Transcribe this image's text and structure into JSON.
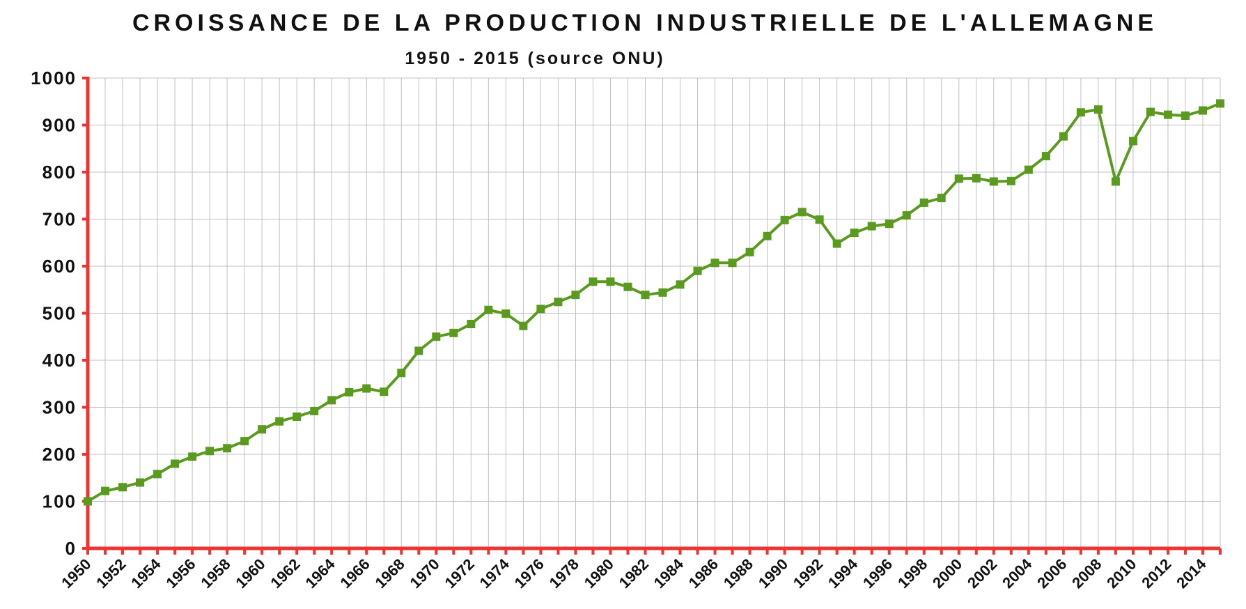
{
  "colors": {
    "series": "#5a9a1e",
    "axis": "#ee3333",
    "grid": "#c0c0c0",
    "text": "#111111"
  },
  "chart_data": {
    "type": "line",
    "title": "CROISSANCE DE LA PRODUCTION INDUSTRIELLE DE L'ALLEMAGNE",
    "subtitle": "1950 - 2015 (source ONU)",
    "xlabel": "",
    "ylabel": "",
    "ylim": [
      0,
      1000
    ],
    "xlim": [
      1950,
      2015
    ],
    "grid": true,
    "legend": "none",
    "yticks": [
      0,
      100,
      200,
      300,
      400,
      500,
      600,
      700,
      800,
      900,
      1000
    ],
    "xtick_labels": [
      "1950",
      "1952",
      "1954",
      "1956",
      "1958",
      "1960",
      "1962",
      "1964",
      "1966",
      "1968",
      "1970",
      "1972",
      "1974",
      "1976",
      "1978",
      "1980",
      "1982",
      "1984",
      "1986",
      "1988",
      "1990",
      "1992",
      "1994",
      "1996",
      "1998",
      "2000",
      "2002",
      "2004",
      "2006",
      "2008",
      "2010",
      "2012",
      "2014"
    ],
    "x": [
      1950,
      1951,
      1952,
      1953,
      1954,
      1955,
      1956,
      1957,
      1958,
      1959,
      1960,
      1961,
      1962,
      1963,
      1964,
      1965,
      1966,
      1967,
      1968,
      1969,
      1970,
      1971,
      1972,
      1973,
      1974,
      1975,
      1976,
      1977,
      1978,
      1979,
      1980,
      1981,
      1982,
      1983,
      1984,
      1985,
      1986,
      1987,
      1988,
      1989,
      1990,
      1991,
      1992,
      1993,
      1994,
      1995,
      1996,
      1997,
      1998,
      1999,
      2000,
      2001,
      2002,
      2003,
      2004,
      2005,
      2006,
      2007,
      2008,
      2009,
      2010,
      2011,
      2012,
      2013,
      2014,
      2015
    ],
    "series": [
      {
        "marker": "square",
        "color": "#5a9a1e",
        "values": [
          100,
          122,
          130,
          140,
          158,
          180,
          195,
          207,
          213,
          228,
          253,
          270,
          280,
          292,
          315,
          332,
          340,
          333,
          373,
          420,
          450,
          458,
          477,
          507,
          499,
          473,
          509,
          524,
          539,
          567,
          567,
          556,
          539,
          544,
          561,
          590,
          607,
          607,
          630,
          664,
          698,
          715,
          699,
          648,
          671,
          685,
          690,
          708,
          735,
          745,
          786,
          787,
          780,
          781,
          805,
          834,
          876,
          927,
          933,
          780,
          866,
          928,
          922,
          920,
          931,
          946
        ]
      }
    ]
  }
}
